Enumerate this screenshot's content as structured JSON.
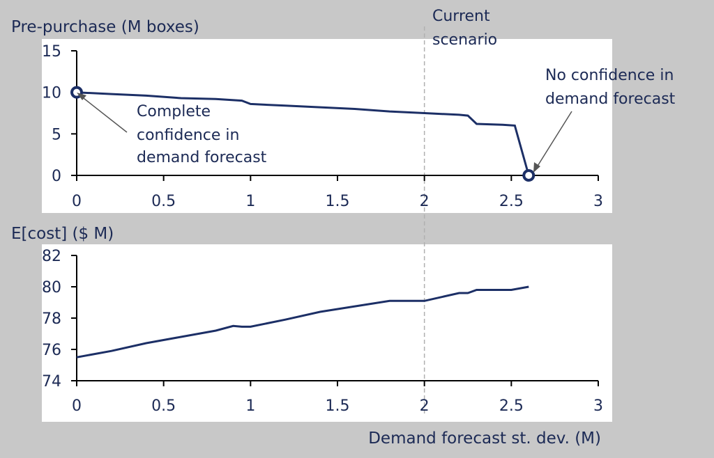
{
  "chart_data": [
    {
      "type": "line",
      "title": "Pre-purchase (M boxes)",
      "xlabel": "",
      "ylabel": "Pre-purchase (M boxes)",
      "xlim": [
        0,
        3
      ],
      "ylim": [
        0,
        15
      ],
      "x_ticks": [
        "0",
        "0.5",
        "1",
        "1.5",
        "2",
        "2.5",
        "3"
      ],
      "y_ticks": [
        "0",
        "5",
        "10",
        "15"
      ],
      "series": [
        {
          "name": "Pre-purchase",
          "x": [
            0,
            0.2,
            0.4,
            0.6,
            0.8,
            0.95,
            1.0,
            1.2,
            1.4,
            1.6,
            1.8,
            2.0,
            2.2,
            2.25,
            2.3,
            2.45,
            2.52,
            2.6
          ],
          "y": [
            10,
            9.8,
            9.6,
            9.3,
            9.2,
            9.0,
            8.6,
            8.4,
            8.2,
            8.0,
            7.7,
            7.5,
            7.3,
            7.2,
            6.2,
            6.1,
            6.0,
            0
          ]
        }
      ],
      "markers": [
        {
          "x": 0,
          "y": 10
        },
        {
          "x": 2.6,
          "y": 0
        }
      ],
      "annotations": [
        {
          "text": [
            "Complete",
            "confidence in",
            "demand forecast"
          ]
        },
        {
          "text": [
            "No confidence in",
            "demand forecast"
          ]
        },
        {
          "text": [
            "Current",
            "scenario"
          ]
        }
      ]
    },
    {
      "type": "line",
      "title": "E[cost] ($ M)",
      "xlabel": "Demand forecast st. dev. (M)",
      "ylabel": "E[cost] ($ M)",
      "xlim": [
        0,
        3
      ],
      "ylim": [
        74,
        82
      ],
      "x_ticks": [
        "0",
        "0.5",
        "1",
        "1.5",
        "2",
        "2.5",
        "3"
      ],
      "y_ticks": [
        "74",
        "76",
        "78",
        "80",
        "82"
      ],
      "series": [
        {
          "name": "E[cost]",
          "x": [
            0,
            0.2,
            0.4,
            0.6,
            0.8,
            0.9,
            0.95,
            1.0,
            1.2,
            1.4,
            1.6,
            1.8,
            2.0,
            2.2,
            2.25,
            2.3,
            2.5,
            2.6
          ],
          "y": [
            75.5,
            75.9,
            76.4,
            76.8,
            77.2,
            77.5,
            77.45,
            77.45,
            77.9,
            78.4,
            78.75,
            79.1,
            79.1,
            79.6,
            79.6,
            79.8,
            79.8,
            80.0
          ]
        }
      ]
    }
  ],
  "reference_line": {
    "x": 2
  },
  "colors": {
    "series": "#1c2f66",
    "background": "#c8c8c8",
    "panel": "#ffffff"
  }
}
